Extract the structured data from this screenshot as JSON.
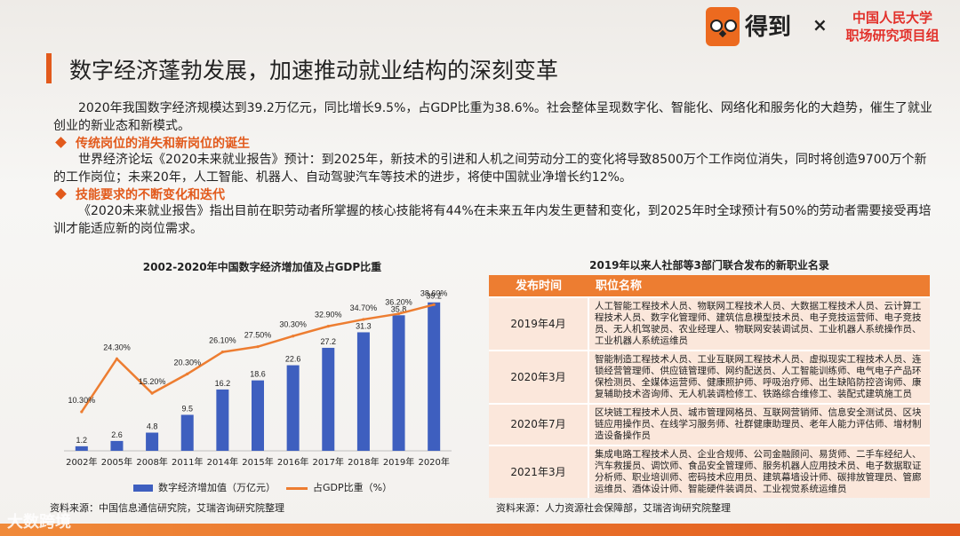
{
  "header": {
    "logo_text": "得到",
    "separator": "×",
    "partner_line1": "中国人民大学",
    "partner_line2": "职场研究项目组"
  },
  "title": "数字经济蓬勃发展，加速推动就业结构的深刻变革",
  "intro": "2020年我国数字经济规模达到39.2万亿元，同比增长9.5%，占GDP比重为38.6%。社会整体呈现数字化、智能化、网络化和服务化的大趋势，催生了就业创业的新业态和新模式。",
  "section1": {
    "heading": "传统岗位的消失和新岗位的诞生",
    "text": "世界经济论坛《2020未来就业报告》预计：到2025年，新技术的引进和人机之间劳动分工的变化将导致8500万个工作岗位消失，同时将创造9700万个新的工作岗位；未来20年，人工智能、机器人、自动驾驶汽车等技术的进步，将使中国就业净增长约12%。"
  },
  "section2": {
    "heading": "技能要求的不断变化和迭代",
    "text": "《2020未来就业报告》指出目前在职劳动者所掌握的核心技能将有44%在未来五年内发生更替和变化，到2025年时全球预计有50%的劳动者需要接受再培训才能适应新的岗位需求。"
  },
  "chart_data": {
    "type": "bar",
    "title": "2002-2020年中国数字经济增加值及占GDP比重",
    "categories": [
      "2002年",
      "2005年",
      "2008年",
      "2011年",
      "2014年",
      "2015年",
      "2016年",
      "2017年",
      "2018年",
      "2019年",
      "2020年"
    ],
    "series": [
      {
        "name": "数字经济增加值（万亿元）",
        "kind": "bar",
        "color": "#3e5fbf",
        "values": [
          1.2,
          2.6,
          4.8,
          9.5,
          16.2,
          18.6,
          22.6,
          27.2,
          31.3,
          35.8,
          39.2
        ]
      },
      {
        "name": "占GDP比重（%）",
        "kind": "line",
        "color": "#ed7d31",
        "values": [
          10.3,
          24.3,
          15.2,
          20.3,
          26.1,
          27.5,
          30.3,
          32.9,
          34.7,
          36.2,
          38.6
        ],
        "labels": [
          "10.30%",
          "24.30%",
          "15.20%",
          "20.30%",
          "26.10%",
          "27.50%",
          "30.30%",
          "32.90%",
          "34.70%",
          "36.20%",
          "38.60%"
        ]
      }
    ],
    "ylim_bar": [
      0,
      45
    ],
    "ylim_line": [
      0,
      45
    ]
  },
  "chart_source": "资料来源：中国信息通信研究院，艾瑞咨询研究院整理",
  "table": {
    "title": "2019年以来人社部等3部门联合发布的新职业名录",
    "col1": "发布时间",
    "col2": "职位名称",
    "rows": [
      {
        "date": "2019年4月",
        "jobs": "人工智能工程技术人员、物联网工程技术人员、大数据工程技术人员、云计算工程技术人员、数字化管理师、建筑信息模型技术员、电子竞技运营师、电子竞技员、无人机驾驶员、农业经理人、物联网安装调试员、工业机器人系统操作员、工业机器人系统运维员"
      },
      {
        "date": "2020年3月",
        "jobs": "智能制造工程技术人员、工业互联网工程技术人员、虚拟现实工程技术人员、连锁经营管理师、供应链管理师、网约配送员、人工智能训练师、电气电子产品环保检测员、全媒体运营师、健康照护师、呼吸治疗师、出生缺陷防控咨询师、康复辅助技术咨询师、无人机装调检修工、铁路综合维修工、装配式建筑施工员"
      },
      {
        "date": "2020年7月",
        "jobs": "区块链工程技术人员、城市管理网格员、互联网营销师、信息安全测试员、区块链应用操作员、在线学习服务师、社群健康助理员、老年人能力评估师、增材制造设备操作员"
      },
      {
        "date": "2021年3月",
        "jobs": "集成电路工程技术人员、企业合规师、公司金融顾问、易货师、二手车经纪人、汽车救援员、调饮师、食品安全管理师、服务机器人应用技术员、电子数据取证分析师、职业培训师、密码技术应用员、建筑幕墙设计师、碳排放管理员、管廊运维员、酒体设计师、智能硬件装调员、工业视觉系统运维员"
      }
    ]
  },
  "table_source": "资料来源：人力资源社会保障部，艾瑞咨询研究院整理",
  "watermark": "大数跨境"
}
